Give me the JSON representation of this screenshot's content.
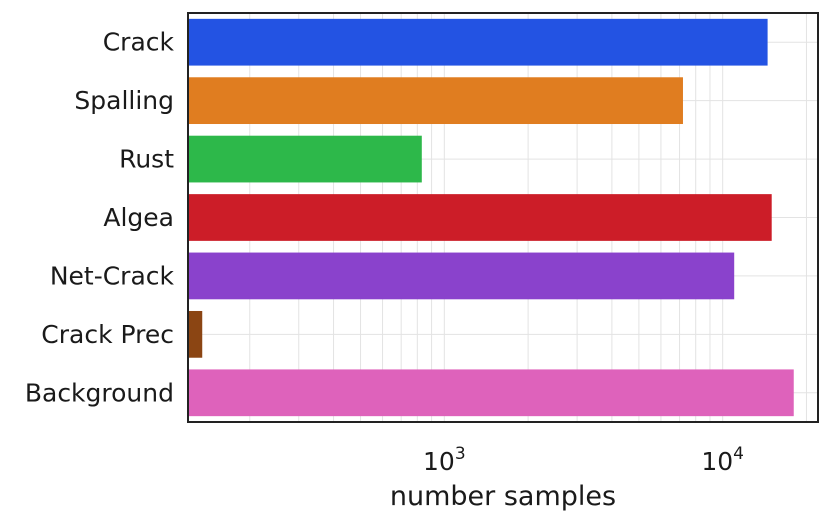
{
  "chart_data": {
    "type": "bar",
    "orientation": "horizontal",
    "title": "",
    "xlabel": "number samples",
    "ylabel": "",
    "x_scale": "log",
    "xlim": [
      120,
      22000
    ],
    "grid": true,
    "categories": [
      "Crack",
      "Spalling",
      "Rust",
      "Algea",
      "Net-Crack",
      "Crack Prec",
      "Background"
    ],
    "values": [
      14500,
      7200,
      830,
      15000,
      11000,
      135,
      18000
    ],
    "colors": [
      "#2353e3",
      "#e07d20",
      "#2db84a",
      "#cc1d28",
      "#8a42cc",
      "#8b4513",
      "#de62bb"
    ],
    "x_ticks": [
      {
        "base": "10",
        "exp": "3",
        "value": 1000
      },
      {
        "base": "10",
        "exp": "4",
        "value": 10000
      }
    ]
  }
}
